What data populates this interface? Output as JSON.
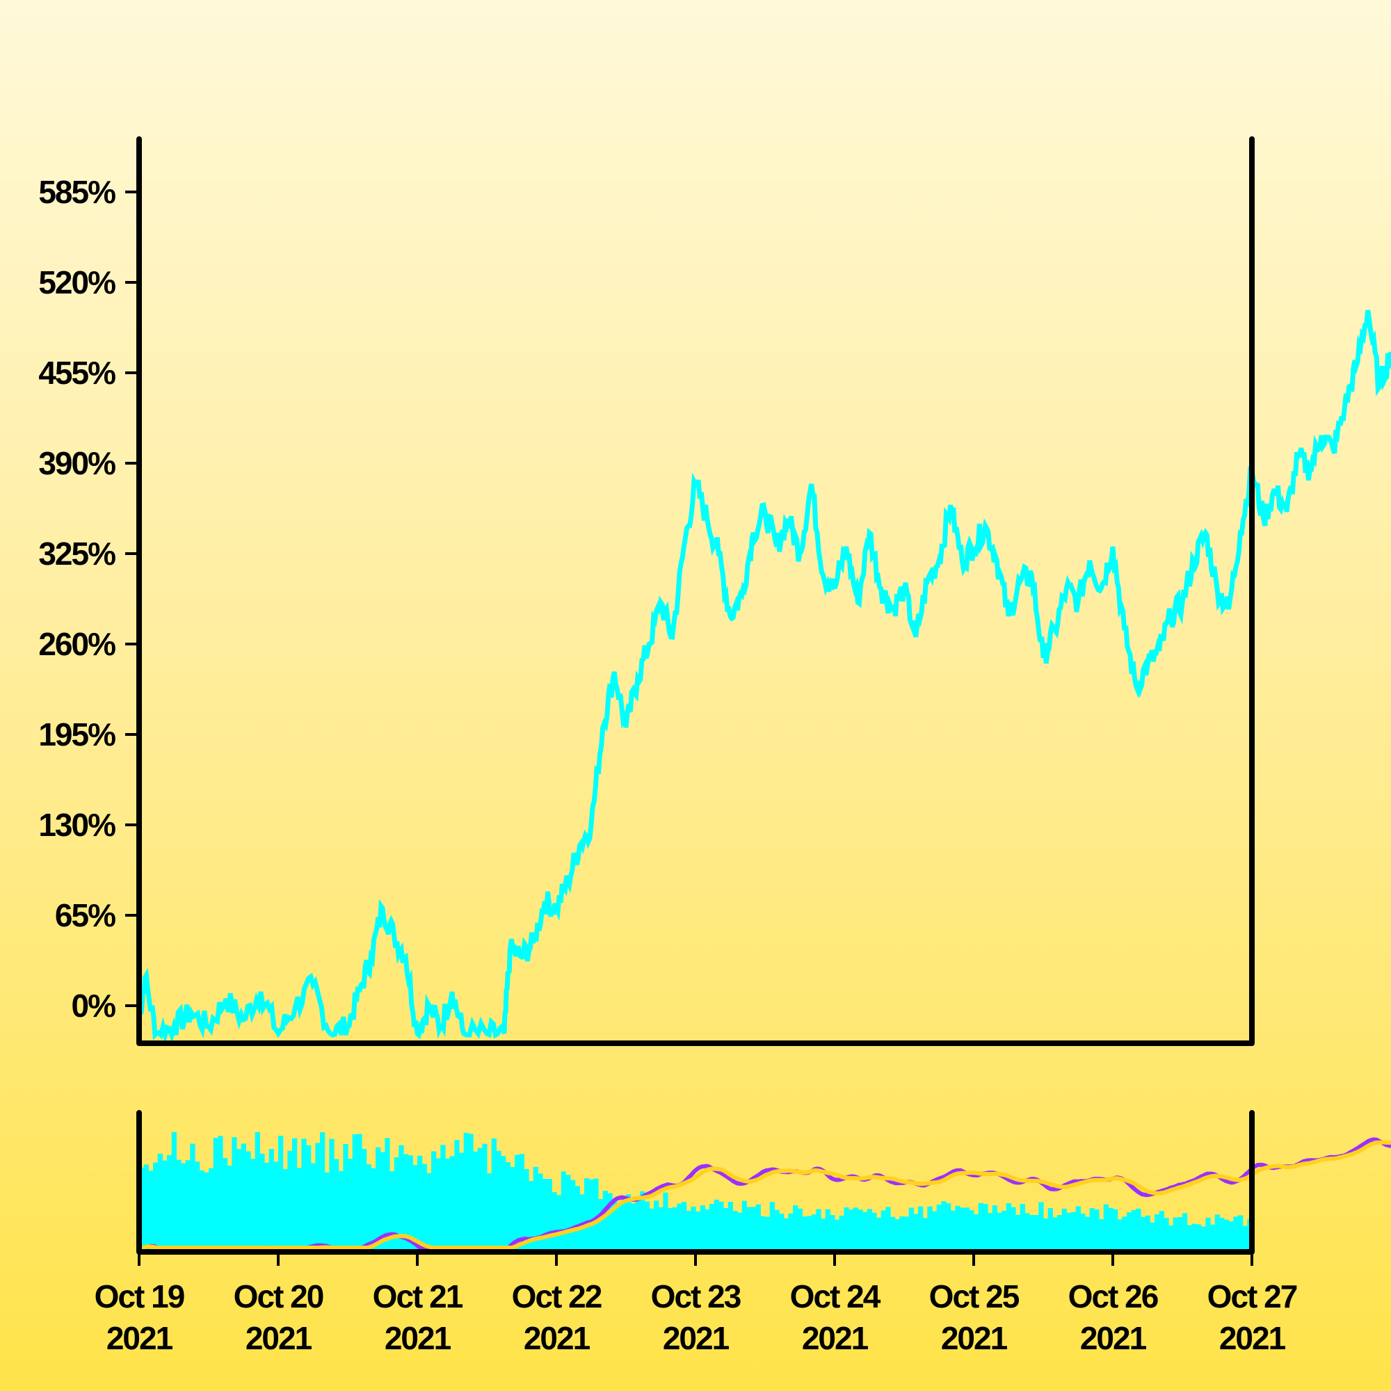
{
  "chart_data": {
    "type": "line",
    "title": "",
    "xlabel": "",
    "ylabel": "",
    "y_ticks": [
      "0%",
      "65%",
      "130%",
      "195%",
      "260%",
      "325%",
      "390%",
      "455%",
      "520%",
      "585%"
    ],
    "y_tick_values": [
      0,
      65,
      130,
      195,
      260,
      325,
      390,
      455,
      520,
      585
    ],
    "ylim": [
      -26,
      625
    ],
    "x_ticks": [
      {
        "line1": "Oct 19",
        "line2": "2021"
      },
      {
        "line1": "Oct 20",
        "line2": "2021"
      },
      {
        "line1": "Oct 21",
        "line2": "2021"
      },
      {
        "line1": "Oct 22",
        "line2": "2021"
      },
      {
        "line1": "Oct 23",
        "line2": "2021"
      },
      {
        "line1": "Oct 24",
        "line2": "2021"
      },
      {
        "line1": "Oct 25",
        "line2": "2021"
      },
      {
        "line1": "Oct 26",
        "line2": "2021"
      },
      {
        "line1": "Oct 27",
        "line2": "2021"
      }
    ],
    "xlim": [
      "2021-10-19",
      "2021-10-27"
    ],
    "grid": false,
    "legend": "none",
    "main_series": {
      "color": "#00ffff",
      "points": [
        [
          "2021-10-19 00:00",
          -10
        ],
        [
          "2021-10-19 01:00",
          20
        ],
        [
          "2021-10-19 03:00",
          -20
        ],
        [
          "2021-10-19 06:00",
          -15
        ],
        [
          "2021-10-19 09:00",
          -5
        ],
        [
          "2021-10-19 12:00",
          -15
        ],
        [
          "2021-10-19 15:00",
          5
        ],
        [
          "2021-10-19 18:00",
          -10
        ],
        [
          "2021-10-19 21:00",
          10
        ],
        [
          "2021-10-20 00:00",
          -20
        ],
        [
          "2021-10-20 03:00",
          0
        ],
        [
          "2021-10-20 06:00",
          15
        ],
        [
          "2021-10-20 09:00",
          -20
        ],
        [
          "2021-10-20 12:00",
          -15
        ],
        [
          "2021-10-20 14:00",
          10
        ],
        [
          "2021-10-20 16:00",
          35
        ],
        [
          "2021-10-20 18:00",
          70
        ],
        [
          "2021-10-20 20:00",
          50
        ],
        [
          "2021-10-20 22:00",
          35
        ],
        [
          "2021-10-21 00:00",
          -20
        ],
        [
          "2021-10-21 02:00",
          0
        ],
        [
          "2021-10-21 04:00",
          -15
        ],
        [
          "2021-10-21 06:00",
          10
        ],
        [
          "2021-10-21 08:00",
          -20
        ],
        [
          "2021-10-21 12:00",
          -20
        ],
        [
          "2021-10-21 15:00",
          -20
        ],
        [
          "2021-10-21 16:00",
          40
        ],
        [
          "2021-10-21 18:00",
          35
        ],
        [
          "2021-10-21 20:00",
          45
        ],
        [
          "2021-10-21 22:00",
          75
        ],
        [
          "2021-10-22 00:00",
          70
        ],
        [
          "2021-10-22 02:00",
          90
        ],
        [
          "2021-10-22 04:00",
          115
        ],
        [
          "2021-10-22 06:00",
          130
        ],
        [
          "2021-10-22 08:00",
          200
        ],
        [
          "2021-10-22 10:00",
          240
        ],
        [
          "2021-10-22 12:00",
          200
        ],
        [
          "2021-10-22 14:00",
          235
        ],
        [
          "2021-10-22 16:00",
          260
        ],
        [
          "2021-10-22 18:00",
          290
        ],
        [
          "2021-10-22 20:00",
          265
        ],
        [
          "2021-10-22 22:00",
          330
        ],
        [
          "2021-10-23 00:00",
          375
        ],
        [
          "2021-10-23 02:00",
          350
        ],
        [
          "2021-10-23 04:00",
          325
        ],
        [
          "2021-10-23 06:00",
          280
        ],
        [
          "2021-10-23 08:00",
          295
        ],
        [
          "2021-10-23 10:00",
          340
        ],
        [
          "2021-10-23 12:00",
          355
        ],
        [
          "2021-10-23 14:00",
          330
        ],
        [
          "2021-10-23 16:00",
          350
        ],
        [
          "2021-10-23 18:00",
          325
        ],
        [
          "2021-10-23 20:00",
          375
        ],
        [
          "2021-10-23 22:00",
          310
        ],
        [
          "2021-10-24 00:00",
          300
        ],
        [
          "2021-10-24 02:00",
          330
        ],
        [
          "2021-10-24 04:00",
          290
        ],
        [
          "2021-10-24 06:00",
          340
        ],
        [
          "2021-10-24 08:00",
          300
        ],
        [
          "2021-10-24 10:00",
          285
        ],
        [
          "2021-10-24 12:00",
          300
        ],
        [
          "2021-10-24 14:00",
          265
        ],
        [
          "2021-10-24 16:00",
          305
        ],
        [
          "2021-10-24 18:00",
          320
        ],
        [
          "2021-10-24 20:00",
          360
        ],
        [
          "2021-10-24 22:00",
          320
        ],
        [
          "2021-10-25 00:00",
          330
        ],
        [
          "2021-10-25 02:00",
          345
        ],
        [
          "2021-10-25 04:00",
          320
        ],
        [
          "2021-10-25 06:00",
          280
        ],
        [
          "2021-10-25 08:00",
          305
        ],
        [
          "2021-10-25 10:00",
          310
        ],
        [
          "2021-10-25 12:00",
          250
        ],
        [
          "2021-10-25 14:00",
          270
        ],
        [
          "2021-10-25 16:00",
          300
        ],
        [
          "2021-10-25 18:00",
          290
        ],
        [
          "2021-10-25 20:00",
          320
        ],
        [
          "2021-10-25 22:00",
          300
        ],
        [
          "2021-10-26 00:00",
          330
        ],
        [
          "2021-10-26 02:00",
          270
        ],
        [
          "2021-10-26 04:00",
          230
        ],
        [
          "2021-10-26 06:00",
          245
        ],
        [
          "2021-10-26 08:00",
          255
        ],
        [
          "2021-10-26 10:00",
          280
        ],
        [
          "2021-10-26 12:00",
          290
        ],
        [
          "2021-10-26 14:00",
          320
        ],
        [
          "2021-10-26 16:00",
          340
        ],
        [
          "2021-10-26 18:00",
          300
        ],
        [
          "2021-10-26 20:00",
          285
        ],
        [
          "2021-10-26 22:00",
          340
        ],
        [
          "2021-10-27 00:00",
          385
        ],
        [
          "2021-10-27 02:00",
          350
        ],
        [
          "2021-10-27 04:00",
          370
        ],
        [
          "2021-10-27 06:00",
          355
        ],
        [
          "2021-10-27 08:00",
          395
        ],
        [
          "2021-10-27 10:00",
          385
        ],
        [
          "2021-10-27 12:00",
          410
        ],
        [
          "2021-10-27 14:00",
          400
        ],
        [
          "2021-10-27 16:00",
          430
        ],
        [
          "2021-10-27 18:00",
          460
        ],
        [
          "2021-10-27 20:00",
          500
        ],
        [
          "2021-10-27 22:00",
          445
        ],
        [
          "2021-10-27 23:59",
          470
        ]
      ]
    },
    "lower_panel": {
      "bars_color": "#00ffff",
      "bar_count": 240,
      "bar_profile": [
        [
          "2021-10-19 00:00",
          0.88
        ],
        [
          "2021-10-21 12:00",
          0.86
        ],
        [
          "2021-10-22 00:00",
          0.6
        ],
        [
          "2021-10-23 00:00",
          0.4
        ],
        [
          "2021-10-24 00:00",
          0.33
        ],
        [
          "2021-10-25 00:00",
          0.38
        ],
        [
          "2021-10-26 00:00",
          0.35
        ],
        [
          "2021-10-26 12:00",
          0.28
        ],
        [
          "2021-10-27 23:59",
          0.22
        ]
      ],
      "lines": [
        {
          "color": "#9b30ff"
        },
        {
          "color": "#ffd21f"
        }
      ]
    }
  }
}
